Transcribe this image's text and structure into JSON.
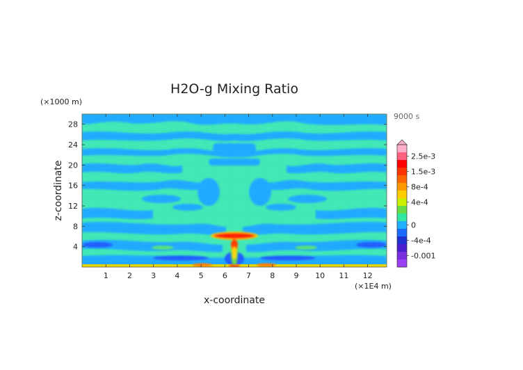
{
  "chart_data": {
    "type": "heatmap",
    "title": "H2O-g Mixing Ratio",
    "xlabel": "x-coordinate",
    "ylabel": "z-coordinate",
    "x_unit": "(×1E4 m)",
    "y_unit": "(×1000 m)",
    "time_label": "9000 s",
    "xlim": [
      0,
      12.8
    ],
    "ylim": [
      0,
      30
    ],
    "x_ticks": [
      "1",
      "2",
      "3",
      "4",
      "5",
      "6",
      "7",
      "8",
      "9",
      "10",
      "11",
      "12"
    ],
    "y_ticks": [
      "4",
      "8",
      "12",
      "16",
      "20",
      "24",
      "28"
    ],
    "x_tick_values": [
      1,
      2,
      3,
      4,
      5,
      6,
      7,
      8,
      9,
      10,
      11,
      12
    ],
    "y_tick_values": [
      4,
      8,
      12,
      16,
      20,
      24,
      28
    ],
    "colorbar": {
      "labels": [
        "2.5e-3",
        "1.5e-3",
        "8e-4",
        "4e-4",
        "0",
        "-4e-4",
        "-0.001"
      ],
      "label_values": [
        0.0025,
        0.0015,
        0.0008,
        0.0004,
        0,
        -0.0004,
        -0.001
      ],
      "levels": [
        {
          "value": 0.003,
          "color": "#ffb0c8"
        },
        {
          "value": 0.0025,
          "color": "#ff6080"
        },
        {
          "value": 0.002,
          "color": "#ff0000"
        },
        {
          "value": 0.0015,
          "color": "#ff3300"
        },
        {
          "value": 0.001,
          "color": "#ff6600"
        },
        {
          "value": 0.0008,
          "color": "#ff9900"
        },
        {
          "value": 0.0006,
          "color": "#ffcc00"
        },
        {
          "value": 0.0004,
          "color": "#ccee00"
        },
        {
          "value": 0.0002,
          "color": "#66dd44"
        },
        {
          "value": 5e-05,
          "color": "#33e8a0"
        },
        {
          "value": 0,
          "color": "#1fb0ff"
        },
        {
          "value": -0.0002,
          "color": "#1a6cff"
        },
        {
          "value": -0.0004,
          "color": "#1f2fd0"
        },
        {
          "value": -0.0007,
          "color": "#4a1fd0"
        },
        {
          "value": -0.001,
          "color": "#7a2fe0"
        },
        {
          "value": -0.0013,
          "color": "#9a40f0"
        }
      ]
    },
    "colors": {
      "background_field": "#3ee7b3",
      "negative_band": "#1fa8ff",
      "deep_negative": "#1a5cff",
      "core": "#ff1a00",
      "core_halo": "#ff7a00",
      "warm": "#ffd000"
    }
  }
}
